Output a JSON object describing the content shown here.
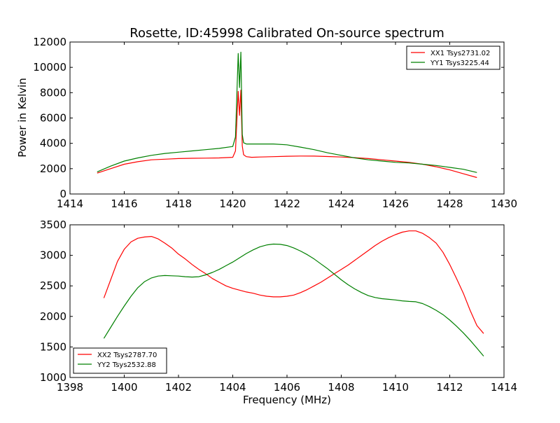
{
  "figure": {
    "title": "Rosette, ID:45998 Calibrated On-source spectrum",
    "xlabel": "Frequency (MHz)"
  },
  "chart_data": [
    {
      "type": "line",
      "title": "Rosette, ID:45998 Calibrated On-source spectrum",
      "xlabel": "",
      "ylabel": "Power in Kelvin",
      "xlim": [
        1414,
        1430
      ],
      "ylim": [
        0,
        12000
      ],
      "xticks": [
        1414,
        1416,
        1418,
        1420,
        1422,
        1424,
        1426,
        1428,
        1430
      ],
      "yticks": [
        0,
        2000,
        4000,
        6000,
        8000,
        10000,
        12000
      ],
      "legend_position": "top-right",
      "series": [
        {
          "name": "XX1 Tsys2731.02",
          "color": "#ff0000",
          "x": [
            1415.0,
            1415.5,
            1416.0,
            1416.5,
            1417.0,
            1417.5,
            1418.0,
            1418.5,
            1419.0,
            1419.5,
            1420.0,
            1420.1,
            1420.2,
            1420.25,
            1420.3,
            1420.35,
            1420.4,
            1420.5,
            1420.7,
            1421.0,
            1421.5,
            1422.0,
            1422.5,
            1423.0,
            1423.5,
            1424.0,
            1424.5,
            1425.0,
            1425.5,
            1426.0,
            1426.5,
            1427.0,
            1427.5,
            1428.0,
            1428.5,
            1429.0
          ],
          "y": [
            1650,
            2000,
            2350,
            2550,
            2700,
            2750,
            2800,
            2820,
            2830,
            2850,
            2900,
            3400,
            8100,
            6200,
            8200,
            3800,
            3100,
            2950,
            2900,
            2920,
            2950,
            2980,
            3000,
            2990,
            2960,
            2920,
            2870,
            2800,
            2700,
            2600,
            2500,
            2350,
            2150,
            1900,
            1600,
            1300
          ]
        },
        {
          "name": "YY1 Tsys3225.44",
          "color": "#008000",
          "x": [
            1415.0,
            1415.5,
            1416.0,
            1416.5,
            1417.0,
            1417.5,
            1418.0,
            1418.5,
            1419.0,
            1419.5,
            1420.0,
            1420.1,
            1420.2,
            1420.25,
            1420.3,
            1420.35,
            1420.4,
            1420.5,
            1420.7,
            1421.0,
            1421.5,
            1422.0,
            1422.5,
            1423.0,
            1423.5,
            1424.0,
            1424.5,
            1425.0,
            1425.5,
            1426.0,
            1426.5,
            1427.0,
            1427.5,
            1428.0,
            1428.5,
            1429.0
          ],
          "y": [
            1750,
            2200,
            2600,
            2850,
            3050,
            3200,
            3300,
            3400,
            3500,
            3600,
            3750,
            4500,
            11100,
            8400,
            11200,
            4700,
            4050,
            3950,
            3950,
            3950,
            3950,
            3880,
            3700,
            3500,
            3250,
            3050,
            2850,
            2700,
            2600,
            2500,
            2450,
            2350,
            2250,
            2100,
            1950,
            1700
          ]
        }
      ]
    },
    {
      "type": "line",
      "title": "",
      "xlabel": "Frequency (MHz)",
      "ylabel": "",
      "xlim": [
        1398,
        1414
      ],
      "ylim": [
        1000,
        3500
      ],
      "xticks": [
        1398,
        1400,
        1402,
        1404,
        1406,
        1408,
        1410,
        1412,
        1414
      ],
      "yticks": [
        1000,
        1500,
        2000,
        2500,
        3000,
        3500
      ],
      "legend_position": "bottom-left",
      "series": [
        {
          "name": "XX2 Tsys2787.70",
          "color": "#ff0000",
          "x": [
            1399.25,
            1399.5,
            1399.75,
            1400.0,
            1400.25,
            1400.5,
            1400.75,
            1401.0,
            1401.25,
            1401.5,
            1401.75,
            1402.0,
            1402.25,
            1402.5,
            1402.75,
            1403.0,
            1403.25,
            1403.5,
            1403.75,
            1404.0,
            1404.25,
            1404.5,
            1404.75,
            1405.0,
            1405.25,
            1405.5,
            1405.75,
            1406.0,
            1406.25,
            1406.5,
            1406.75,
            1407.0,
            1407.25,
            1407.5,
            1407.75,
            1408.0,
            1408.25,
            1408.5,
            1408.75,
            1409.0,
            1409.25,
            1409.5,
            1409.75,
            1410.0,
            1410.25,
            1410.5,
            1410.75,
            1411.0,
            1411.25,
            1411.5,
            1411.75,
            1412.0,
            1412.25,
            1412.5,
            1412.75,
            1413.0,
            1413.25
          ],
          "y": [
            2300,
            2600,
            2900,
            3100,
            3220,
            3280,
            3300,
            3310,
            3270,
            3200,
            3120,
            3020,
            2940,
            2850,
            2770,
            2700,
            2620,
            2560,
            2500,
            2460,
            2430,
            2400,
            2380,
            2350,
            2330,
            2320,
            2320,
            2330,
            2350,
            2390,
            2440,
            2500,
            2560,
            2630,
            2700,
            2770,
            2840,
            2920,
            3000,
            3080,
            3160,
            3230,
            3290,
            3340,
            3380,
            3400,
            3400,
            3360,
            3290,
            3200,
            3050,
            2850,
            2620,
            2380,
            2100,
            1850,
            1720
          ]
        },
        {
          "name": "YY2 Tsys2532.88",
          "color": "#008000",
          "x": [
            1399.25,
            1399.5,
            1399.75,
            1400.0,
            1400.25,
            1400.5,
            1400.75,
            1401.0,
            1401.25,
            1401.5,
            1401.75,
            1402.0,
            1402.25,
            1402.5,
            1402.75,
            1403.0,
            1403.25,
            1403.5,
            1403.75,
            1404.0,
            1404.25,
            1404.5,
            1404.75,
            1405.0,
            1405.25,
            1405.5,
            1405.75,
            1406.0,
            1406.25,
            1406.5,
            1406.75,
            1407.0,
            1407.25,
            1407.5,
            1407.75,
            1408.0,
            1408.25,
            1408.5,
            1408.75,
            1409.0,
            1409.25,
            1409.5,
            1409.75,
            1410.0,
            1410.25,
            1410.5,
            1410.75,
            1411.0,
            1411.25,
            1411.5,
            1411.75,
            1412.0,
            1412.25,
            1412.5,
            1412.75,
            1413.0,
            1413.25
          ],
          "y": [
            1640,
            1820,
            2000,
            2170,
            2330,
            2470,
            2570,
            2630,
            2660,
            2670,
            2665,
            2660,
            2650,
            2645,
            2650,
            2680,
            2720,
            2770,
            2830,
            2890,
            2960,
            3030,
            3090,
            3140,
            3170,
            3185,
            3180,
            3160,
            3120,
            3070,
            3010,
            2940,
            2860,
            2780,
            2690,
            2600,
            2520,
            2450,
            2390,
            2340,
            2310,
            2290,
            2280,
            2270,
            2255,
            2245,
            2240,
            2210,
            2160,
            2100,
            2030,
            1940,
            1840,
            1730,
            1610,
            1480,
            1350
          ]
        }
      ]
    }
  ]
}
